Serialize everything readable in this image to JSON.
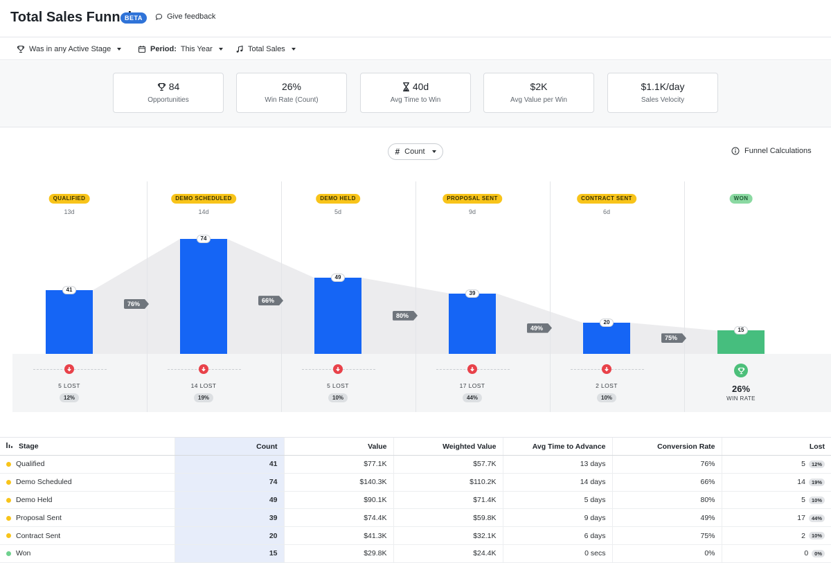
{
  "header": {
    "title": "Total Sales Funnel",
    "badge": "BETA",
    "feedback": "Give feedback"
  },
  "filters": {
    "stage_filter": "Was in any Active Stage",
    "period_label": "Period:",
    "period_value": "This Year",
    "metric": "Total Sales"
  },
  "kpis": [
    {
      "value": "84",
      "label": "Opportunities",
      "icon": "trophy-icon"
    },
    {
      "value": "26%",
      "label": "Win Rate (Count)"
    },
    {
      "value": "40d",
      "label": "Avg Time to Win",
      "icon": "hourglass-icon"
    },
    {
      "value": "$2K",
      "label": "Avg Value per Win"
    },
    {
      "value": "$1.1K/day",
      "label": "Sales Velocity"
    }
  ],
  "controls": {
    "count_button": "Count",
    "funnel_calculations": "Funnel Calculations"
  },
  "colors": {
    "bar": "#1565f5",
    "won_bar": "#46be7e",
    "stage_pill": "#f8c41a",
    "won_pill": "#8bd9a2",
    "lost_icon": "#e8424a"
  },
  "funnel": {
    "stages": [
      {
        "name": "QUALIFIED",
        "days": "13d",
        "count": "41",
        "lost": "5 LOST",
        "lost_pct": "12%"
      },
      {
        "name": "DEMO SCHEDULED",
        "days": "14d",
        "count": "74",
        "lost": "14 LOST",
        "lost_pct": "19%"
      },
      {
        "name": "DEMO HELD",
        "days": "5d",
        "count": "49",
        "lost": "5 LOST",
        "lost_pct": "10%"
      },
      {
        "name": "PROPOSAL SENT",
        "days": "9d",
        "count": "39",
        "lost": "17 LOST",
        "lost_pct": "44%"
      },
      {
        "name": "CONTRACT SENT",
        "days": "6d",
        "count": "20",
        "lost": "2 LOST",
        "lost_pct": "10%"
      },
      {
        "name": "WON",
        "days": "",
        "count": "15",
        "win_rate": "26%",
        "win_label": "WIN RATE"
      }
    ],
    "conversions": [
      "76%",
      "66%",
      "80%",
      "49%",
      "75%"
    ]
  },
  "chart_data": {
    "type": "bar",
    "categories": [
      "QUALIFIED",
      "DEMO SCHEDULED",
      "DEMO HELD",
      "PROPOSAL SENT",
      "CONTRACT SENT",
      "WON"
    ],
    "values": [
      41,
      74,
      49,
      39,
      20,
      15
    ],
    "ylim": [
      0,
      74
    ],
    "grid": false
  },
  "table": {
    "headers": [
      "Stage",
      "Count",
      "Value",
      "Weighted Value",
      "Avg Time to Advance",
      "Conversion Rate",
      "Lost"
    ],
    "rows": [
      {
        "stage": "Qualified",
        "count": "41",
        "value": "$77.1K",
        "weighted": "$57.7K",
        "time": "13 days",
        "conv": "76%",
        "lost": "5",
        "lost_pct": "12%",
        "dot": "#f8c41a"
      },
      {
        "stage": "Demo Scheduled",
        "count": "74",
        "value": "$140.3K",
        "weighted": "$110.2K",
        "time": "14 days",
        "conv": "66%",
        "lost": "14",
        "lost_pct": "19%",
        "dot": "#f8c41a"
      },
      {
        "stage": "Demo Held",
        "count": "49",
        "value": "$90.1K",
        "weighted": "$71.4K",
        "time": "5 days",
        "conv": "80%",
        "lost": "5",
        "lost_pct": "10%",
        "dot": "#f8c41a"
      },
      {
        "stage": "Proposal Sent",
        "count": "39",
        "value": "$74.4K",
        "weighted": "$59.8K",
        "time": "9 days",
        "conv": "49%",
        "lost": "17",
        "lost_pct": "44%",
        "dot": "#f8c41a"
      },
      {
        "stage": "Contract Sent",
        "count": "20",
        "value": "$41.3K",
        "weighted": "$32.1K",
        "time": "6 days",
        "conv": "75%",
        "lost": "2",
        "lost_pct": "10%",
        "dot": "#f8c41a"
      },
      {
        "stage": "Won",
        "count": "15",
        "value": "$29.8K",
        "weighted": "$24.4K",
        "time": "0 secs",
        "conv": "0%",
        "lost": "0",
        "lost_pct": "0%",
        "dot": "#6fd18e"
      }
    ]
  }
}
